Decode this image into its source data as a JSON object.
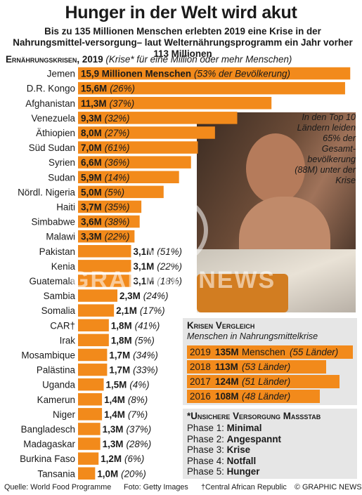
{
  "title": "Hunger in der Welt wird akut",
  "subtitle": "Bis zu 135 Millionen Menschen erlebten 2019 eine Krise in der Nahrungsmittel-versorgung– laut Welternährungsprogramm ein Jahr vorher 113 Millionen",
  "section": {
    "heading": "Ernährungskrisen, 2019",
    "note": "(Krise* für eine Million oder mehr Menschen)"
  },
  "colors": {
    "bar": "#f28a1b",
    "panel": "#e6e6e6"
  },
  "chart_data": {
    "type": "bar",
    "orientation": "horizontal",
    "title": "Ernährungskrisen, 2019",
    "unit": "Millionen Menschen",
    "categories": [
      "Jemen",
      "D.R. Kongo",
      "Afghanistan",
      "Venezuela",
      "Äthiopien",
      "Süd Sudan",
      "Syrien",
      "Sudan",
      "Nördl. Nigeria",
      "Haiti",
      "Simbabwe",
      "Malawi",
      "Pakistan",
      "Kenia",
      "Guatemala",
      "Sambia",
      "Somalia",
      "CAR†",
      "Irak",
      "Mosambique",
      "Palästina",
      "Uganda",
      "Kamerun",
      "Niger",
      "Bangladesch",
      "Madagaskar",
      "Burkina Faso",
      "Tansania"
    ],
    "values": [
      15.9,
      15.6,
      11.3,
      9.3,
      8.0,
      7.0,
      6.6,
      5.9,
      5.0,
      3.7,
      3.6,
      3.3,
      3.1,
      3.1,
      3.1,
      2.3,
      2.1,
      1.8,
      1.8,
      1.7,
      1.7,
      1.5,
      1.4,
      1.4,
      1.3,
      1.3,
      1.2,
      1.0
    ],
    "value_labels": [
      "15,9 Millionen Menschen",
      "15,6M",
      "11,3M",
      "9,3M",
      "8,0M",
      "7,0M",
      "6,6M",
      "5,9M",
      "5,0M",
      "3,7M",
      "3,6M",
      "3,3M",
      "3,1M",
      "3,1M",
      "3,1M",
      "2,3M",
      "2,1M",
      "1,8M",
      "1,8M",
      "1,7M",
      "1,7M",
      "1,5M",
      "1,4M",
      "1,4M",
      "1,3M",
      "1,3M",
      "1,2M",
      "1,0M"
    ],
    "percent_labels": [
      "(53% der Bevölkerung)",
      "(26%)",
      "(37%)",
      "(32%)",
      "(27%)",
      "(61%)",
      "(36%)",
      "(14%)",
      "(5%)",
      "(35%)",
      "(38%)",
      "(22%)",
      "(51%)",
      "(22%)",
      "(18%)",
      "(24%)",
      "(17%)",
      "(41%)",
      "(5%)",
      "(34%)",
      "(33%)",
      "(4%)",
      "(8%)",
      "(7%)",
      "(37%)",
      "(28%)",
      "(6%)",
      "(20%)"
    ],
    "percent_of_population": [
      53,
      26,
      37,
      32,
      27,
      61,
      36,
      14,
      5,
      35,
      38,
      22,
      51,
      22,
      18,
      24,
      17,
      41,
      5,
      34,
      33,
      4,
      8,
      7,
      37,
      28,
      6,
      20
    ],
    "xlim": [
      0,
      16.3
    ]
  },
  "photo_caption": "In den Top 10 Ländern leiden 65% der Gesamt-bevölkerung (88M) unter der Krise",
  "watermark": "GRAPHIC NEWS",
  "comparison": {
    "title": "Krisen Vergleich",
    "subtitle": "Menschen in Nahrungsmittelkrise",
    "rows": [
      {
        "year": "2019",
        "value": "135M",
        "unit": "Menschen",
        "countries": "(55 Länder)",
        "amount": 135
      },
      {
        "year": "2018",
        "value": "113M",
        "unit": "",
        "countries": "(53 Länder)",
        "amount": 113
      },
      {
        "year": "2017",
        "value": "124M",
        "unit": "",
        "countries": "(51 Länder)",
        "amount": 124
      },
      {
        "year": "2016",
        "value": "108M",
        "unit": "",
        "countries": "(48 Länder)",
        "amount": 108
      }
    ]
  },
  "scale": {
    "title": "*Unsichere Versorgung Massstab",
    "phases": [
      {
        "label": "Phase 1:",
        "level": "Minimal"
      },
      {
        "label": "Phase 2:",
        "level": "Angespannt"
      },
      {
        "label": "Phase 3:",
        "level": "Krise"
      },
      {
        "label": "Phase 4:",
        "level": "Notfall"
      },
      {
        "label": "Phase 5:",
        "level": "Hunger"
      }
    ]
  },
  "footer": {
    "source": "Quelle: World Food Programme",
    "photo": "Foto: Getty Images",
    "note": "†Central African Republic",
    "copyright": "© GRAPHIC NEWS"
  }
}
